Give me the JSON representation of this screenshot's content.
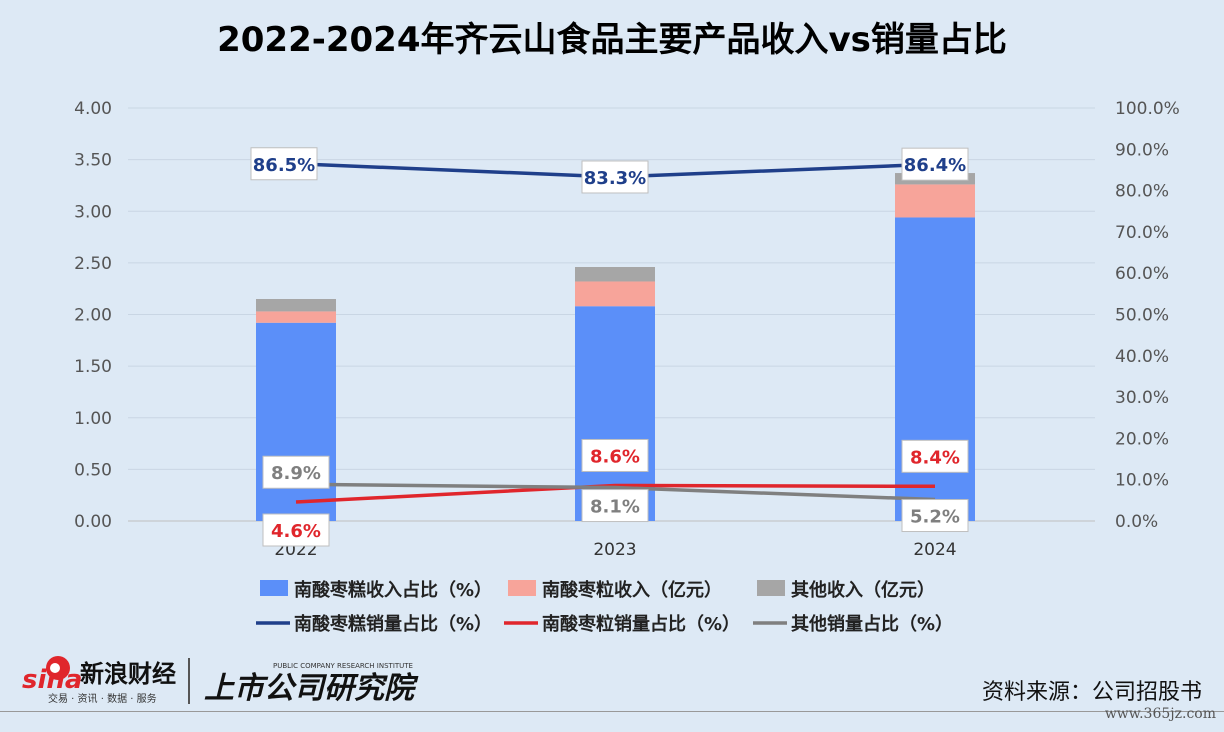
{
  "title": "2022-2024年齐云山食品主要产品收入vs销量占比",
  "source": "资料来源：公司招股书",
  "watermark_site": "www.365jz.com",
  "brand_sina": "新浪财经",
  "brand_sina_sub": "交易 · 资讯 · 数据 · 服务",
  "brand_sina_logo": "sina",
  "brand_research": "上市公司研究院",
  "brand_research_en": "PUBLIC COMPANY RESEARCH INSTITUTE",
  "chart_data": {
    "type": "bar",
    "categories": [
      "2022",
      "2023",
      "2024"
    ],
    "left_axis": {
      "ylim": [
        0,
        4
      ],
      "ticks": [
        "0.00",
        "0.50",
        "1.00",
        "1.50",
        "2.00",
        "2.50",
        "3.00",
        "3.50",
        "4.00"
      ]
    },
    "right_axis": {
      "ylim": [
        0,
        100
      ],
      "ticks": [
        "0.0%",
        "10.0%",
        "20.0%",
        "30.0%",
        "40.0%",
        "50.0%",
        "60.0%",
        "70.0%",
        "80.0%",
        "90.0%",
        "100.0%"
      ]
    },
    "bar_series": [
      {
        "name": "南酸枣糕收入占比（%）",
        "color": "#5b8ff9",
        "values": [
          1.92,
          2.08,
          2.94
        ]
      },
      {
        "name": "南酸枣粒收入（亿元）",
        "color": "#f7a49a",
        "values": [
          0.11,
          0.24,
          0.32
        ]
      },
      {
        "name": "其他收入（亿元）",
        "color": "#a6a6a6",
        "values": [
          0.12,
          0.14,
          0.11
        ]
      }
    ],
    "line_series": [
      {
        "name": "南酸枣糕销量占比（%）",
        "color": "#1f3f8a",
        "values": [
          86.5,
          83.3,
          86.4
        ],
        "labels": [
          "86.5%",
          "83.3%",
          "86.4%"
        ]
      },
      {
        "name": "南酸枣粒销量占比（%）",
        "color": "#e0262c",
        "values": [
          4.6,
          8.6,
          8.4
        ],
        "labels": [
          "4.6%",
          "8.6%",
          "8.4%"
        ]
      },
      {
        "name": "其他销量占比（%）",
        "color": "#7f7f7f",
        "values": [
          8.9,
          8.1,
          5.2
        ],
        "labels": [
          "8.9%",
          "8.1%",
          "5.2%"
        ]
      }
    ],
    "grid": true,
    "legend": "bottom"
  }
}
